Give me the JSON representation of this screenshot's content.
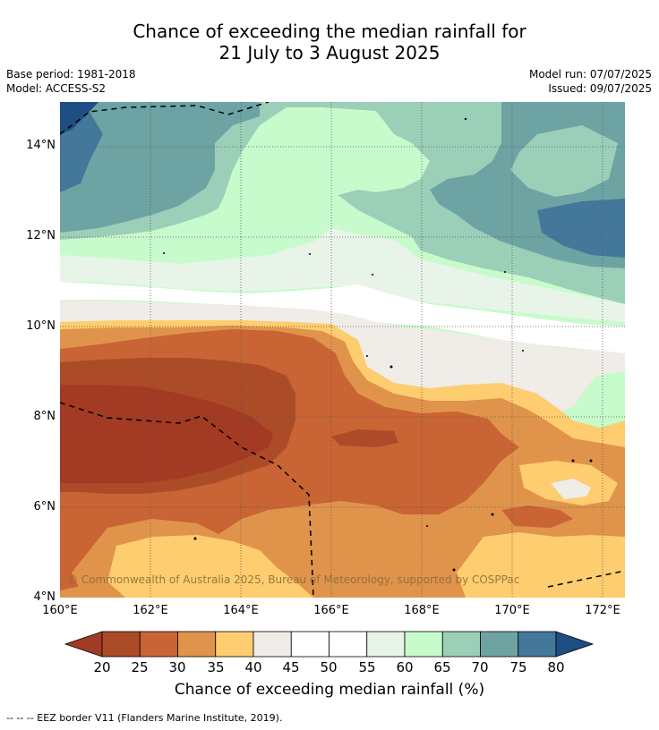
{
  "title": {
    "line1": "Chance of exceeding the median rainfall for",
    "line2": "21 July to 3 August 2025"
  },
  "meta": {
    "base_period": "Base period: 1981-2018",
    "model": "Model: ACCESS-S2",
    "model_run": "Model run: 07/07/2025",
    "issued": "Issued: 09/07/2025"
  },
  "map": {
    "lat_labels": [
      "14°N",
      "12°N",
      "10°N",
      "8°N",
      "6°N",
      "4°N"
    ],
    "lon_labels": [
      "160°E",
      "162°E",
      "164°E",
      "166°E",
      "168°E",
      "170°E",
      "172°E"
    ],
    "lat_range": [
      4,
      15
    ],
    "lon_range": [
      160,
      172.5
    ],
    "copyright": "© Commonwealth of Australia 2025, Bureau of Meteorology, supported by COSPPac"
  },
  "colorbar": {
    "ticks": [
      "20",
      "25",
      "30",
      "35",
      "40",
      "45",
      "50",
      "55",
      "60",
      "65",
      "70",
      "75",
      "80"
    ],
    "colors": [
      "#a33a23",
      "#ac4b27",
      "#c96434",
      "#e0944b",
      "#fdcd6f",
      "#f0ece8",
      "#ffffff",
      "#ffffff",
      "#e9f4e9",
      "#c8fbcb",
      "#9bcfb8",
      "#6ea3a3",
      "#43789a",
      "#1f4e84"
    ],
    "label": "Chance of exceeding median rainfall (%)"
  },
  "legend": {
    "eez": "--  --  -- EEZ border V11 (Flanders Marine Institute, 2019)."
  }
}
